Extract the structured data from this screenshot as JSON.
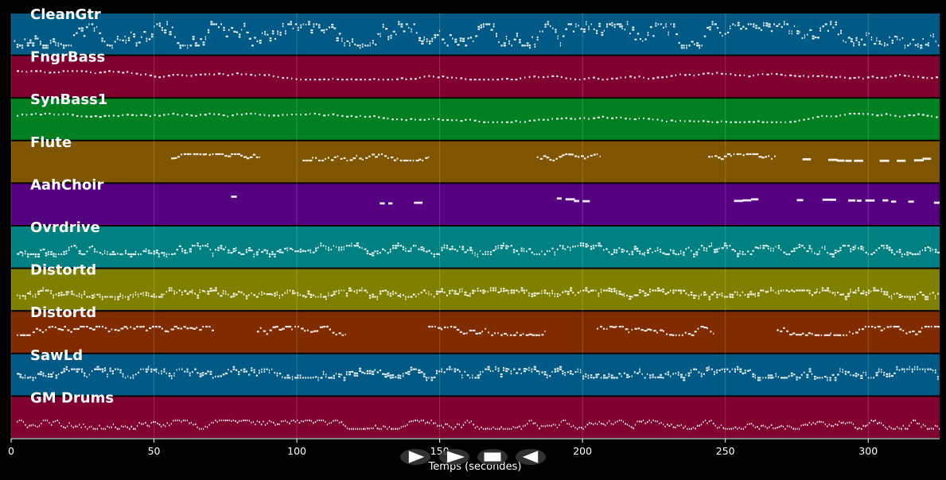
{
  "chart_data": {
    "type": "piano-roll",
    "title": "",
    "xlabel": "Temps (secondes)",
    "ylabel": "",
    "xlim": [
      0,
      325
    ],
    "x_ticks": [
      0,
      50,
      100,
      150,
      200,
      250,
      300
    ],
    "grid": true,
    "tracks": [
      {
        "name": "CleanGtr",
        "color": "#005a85",
        "segments": [
          [
            1,
            40,
            "dense"
          ],
          [
            40,
            325,
            "dense"
          ]
        ],
        "pitch_range": [
          0.25,
          0.75
        ]
      },
      {
        "name": "FngrBass",
        "color": "#800030",
        "segments": [
          [
            2,
            325,
            "sparse"
          ]
        ],
        "pitch_range": [
          0.35,
          0.55
        ]
      },
      {
        "name": "SynBass1",
        "color": "#008020",
        "segments": [
          [
            2,
            325,
            "sparse"
          ]
        ],
        "pitch_range": [
          0.35,
          0.55
        ]
      },
      {
        "name": "Flute",
        "color": "#7f5500",
        "segments": [
          [
            56,
            87,
            "phrase"
          ],
          [
            102,
            146,
            "phrase"
          ],
          [
            184,
            206,
            "phrase"
          ],
          [
            244,
            268,
            "phrase"
          ],
          [
            277,
            322,
            "notes"
          ]
        ],
        "pitch_range": [
          0.3,
          0.45
        ]
      },
      {
        "name": "AahChoir",
        "color": "#550080",
        "segments": [
          [
            77,
            80,
            "notes"
          ],
          [
            123,
            144,
            "notes"
          ],
          [
            191,
            204,
            "notes"
          ],
          [
            250,
            262,
            "notes"
          ],
          [
            275,
            325,
            "notes"
          ]
        ],
        "pitch_range": [
          0.28,
          0.45
        ]
      },
      {
        "name": "Ovrdrive",
        "color": "#008080",
        "segments": [
          [
            2,
            325,
            "dense"
          ]
        ],
        "pitch_range": [
          0.45,
          0.65
        ]
      },
      {
        "name": "Distortd",
        "color": "#808000",
        "segments": [
          [
            2,
            325,
            "dense"
          ]
        ],
        "pitch_range": [
          0.5,
          0.65
        ]
      },
      {
        "name": "Distortd",
        "color": "#802b00",
        "segments": [
          [
            2,
            71,
            "phrase"
          ],
          [
            86,
            117,
            "phrase"
          ],
          [
            146,
            187,
            "phrase"
          ],
          [
            205,
            246,
            "phrase"
          ],
          [
            268,
            325,
            "phrase"
          ]
        ],
        "pitch_range": [
          0.35,
          0.55
        ]
      },
      {
        "name": "SawLd",
        "color": "#005a85",
        "segments": [
          [
            2,
            325,
            "dense"
          ]
        ],
        "pitch_range": [
          0.35,
          0.55
        ]
      },
      {
        "name": "GM Drums",
        "color": "#800030",
        "segments": [
          [
            2,
            325,
            "drums"
          ]
        ],
        "pitch_range": [
          0.55,
          0.75
        ]
      }
    ]
  },
  "controls": [
    {
      "name": "play",
      "icon": "play-icon"
    },
    {
      "name": "fast-forward",
      "icon": "fast-forward-icon"
    },
    {
      "name": "stop",
      "icon": "stop-icon"
    },
    {
      "name": "rewind",
      "icon": "rewind-icon"
    }
  ],
  "colors": {
    "background": "#000000",
    "note": "#ffffff",
    "grid": "#ffffff"
  }
}
